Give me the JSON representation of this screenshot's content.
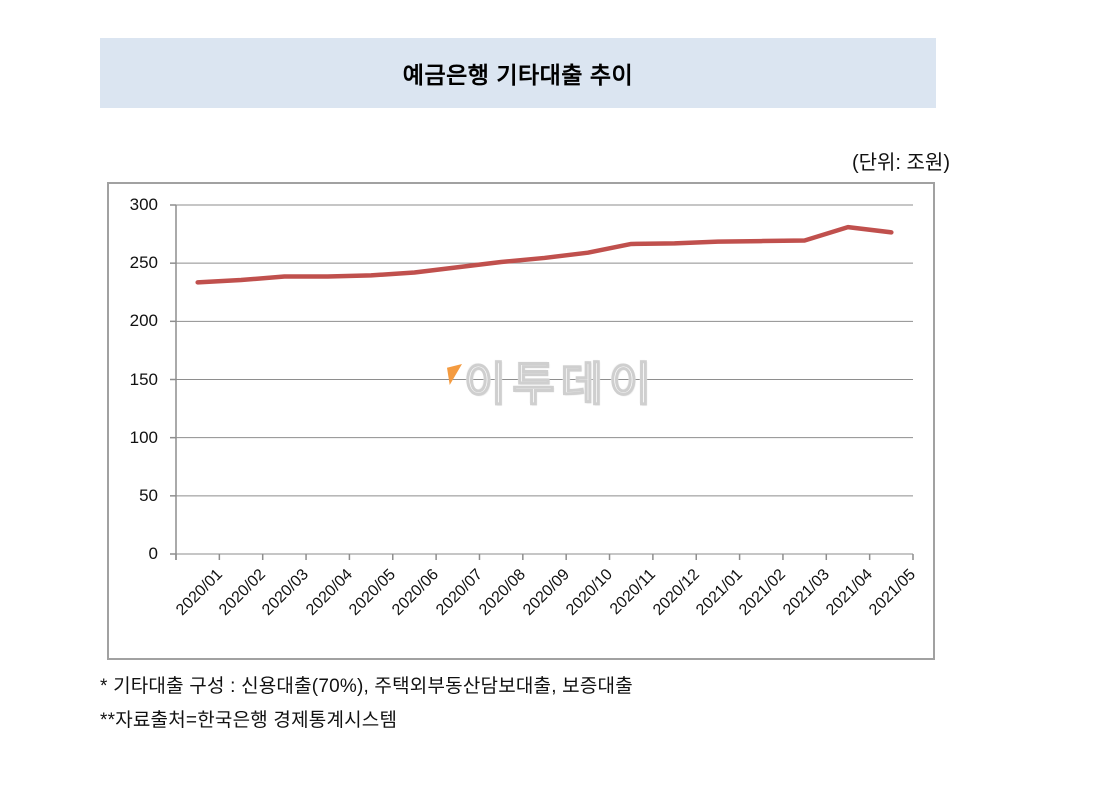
{
  "page": {
    "title": "예금은행 기타대출 추이",
    "unit_label": "(단위: 조원)",
    "watermark": {
      "text": "이투데이",
      "flag_color": "#f49b40"
    },
    "footnotes": [
      "* 기타대출 구성 : 신용대출(70%), 주택외부동산담보대출, 보증대출",
      "**자료출처=한국은행 경제통계시스템"
    ]
  },
  "chart_data": {
    "type": "line",
    "title": "예금은행 기타대출 추이",
    "unit": "조원",
    "categories": [
      "2020/01",
      "2020/02",
      "2020/03",
      "2020/04",
      "2020/05",
      "2020/06",
      "2020/07",
      "2020/08",
      "2020/09",
      "2020/10",
      "2020/11",
      "2020/12",
      "2021/01",
      "2021/02",
      "2021/03",
      "2021/04",
      "2021/05"
    ],
    "series": [
      {
        "name": "기타대출",
        "color": "#c0504d",
        "values": [
          233.5,
          235.5,
          238.5,
          238.5,
          239.5,
          242,
          246.5,
          251,
          254.5,
          259,
          266.5,
          267,
          268.5,
          269,
          269.5,
          281,
          276.5
        ]
      }
    ],
    "xlabel": "",
    "ylabel": "",
    "ylim": [
      0,
      300
    ],
    "yticks": [
      0,
      50,
      100,
      150,
      200,
      250,
      300
    ],
    "grid": true,
    "legend_position": "none"
  },
  "colors": {
    "line": "#c0504d",
    "grid": "#8e8e8e",
    "axis": "#8e8e8e",
    "chart_border": "#a1a1a1",
    "title_bg": "#dbe5f1"
  }
}
